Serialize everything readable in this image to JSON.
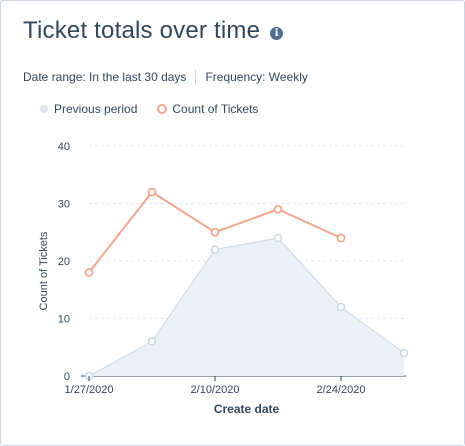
{
  "card": {
    "title": "Ticket totals over time",
    "info_icon": "info-icon",
    "date_range": "Date range: In the last 30 days",
    "frequency": "Frequency: Weekly"
  },
  "colors": {
    "previous_fill": "#eaf0f6",
    "previous_line": "#cbd6e2",
    "current_line": "#f2a68d",
    "grid": "#dfe3eb"
  },
  "chart_data": {
    "type": "line",
    "xlabel": "Create date",
    "ylabel": "Count of Tickets",
    "ylim": [
      0,
      40
    ],
    "yticks": [
      0,
      10,
      20,
      30,
      40
    ],
    "grid": true,
    "legend_placement": "top-left",
    "x": [
      "1/27/2020",
      "2/3/2020",
      "2/10/2020",
      "2/17/2020",
      "2/24/2020",
      "3/2/2020"
    ],
    "x_tick_labels": [
      "1/27/2020",
      "2/10/2020",
      "2/24/2020"
    ],
    "series": [
      {
        "name": "Previous period",
        "type": "area",
        "values": [
          0,
          6,
          22,
          24,
          12,
          4
        ]
      },
      {
        "name": "Count of Tickets",
        "type": "line",
        "values": [
          18,
          32,
          25,
          29,
          24,
          null
        ]
      }
    ]
  }
}
